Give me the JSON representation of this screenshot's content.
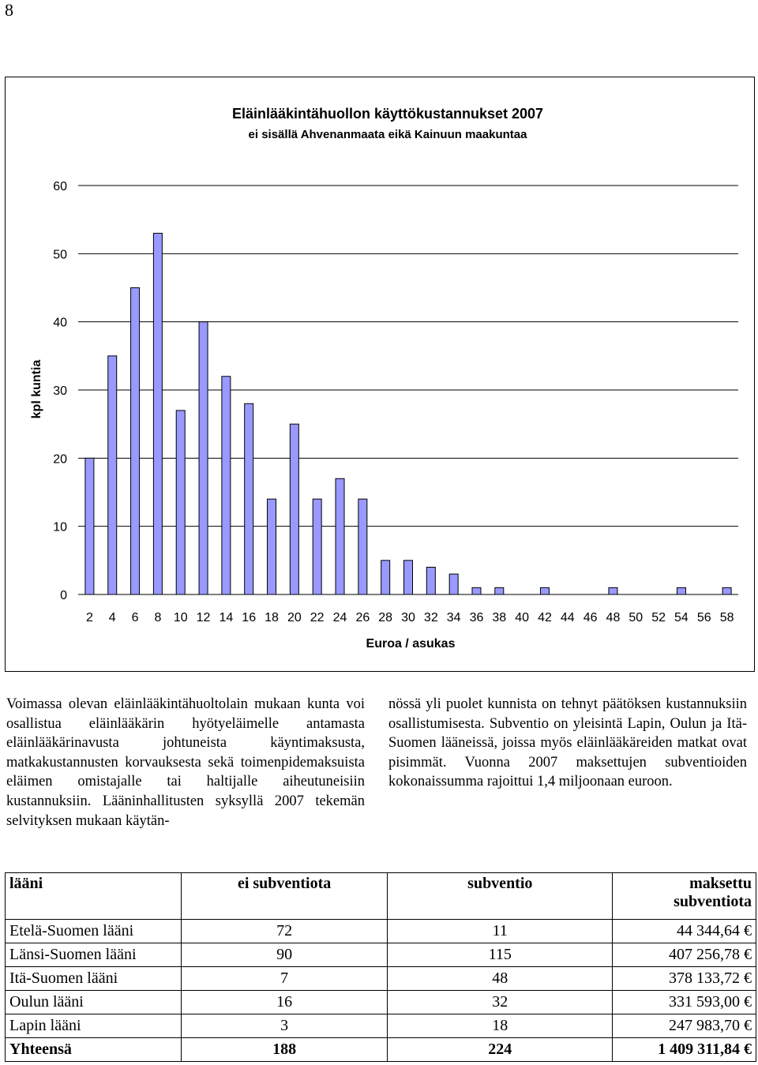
{
  "page_number": "8",
  "chart_data": {
    "type": "bar",
    "title": "Eläinlääkintähuollon käyttökustannukset 2007",
    "subtitle": "ei sisällä Ahvenanmaata eikä Kainuun maakuntaa",
    "xlabel": "Euroa / asukas",
    "ylabel": "kpl kuntia",
    "ylim": [
      0,
      60
    ],
    "yticks": [
      0,
      10,
      20,
      30,
      40,
      50,
      60
    ],
    "grid": true,
    "categories": [
      "2",
      "4",
      "6",
      "8",
      "10",
      "12",
      "14",
      "16",
      "18",
      "20",
      "22",
      "24",
      "26",
      "28",
      "30",
      "32",
      "34",
      "36",
      "38",
      "40",
      "42",
      "44",
      "46",
      "48",
      "50",
      "52",
      "54",
      "56",
      "58"
    ],
    "values": [
      20,
      35,
      45,
      53,
      27,
      40,
      32,
      28,
      14,
      25,
      14,
      17,
      14,
      5,
      5,
      4,
      3,
      1,
      1,
      0,
      1,
      0,
      0,
      1,
      0,
      0,
      1,
      0,
      1
    ],
    "bar_color": "#9999ff"
  },
  "text": {
    "left_column": "Voimassa olevan eläinlääkintähuoltolain mukaan kunta voi osallistua eläinlääkärin hyötyeläimelle antamasta eläinlääkärinavusta johtuneista käyntimaksusta, matkakustannusten korvauksesta sekä toimenpidemaksuista eläimen omistajalle tai haltijalle aiheutuneisiin kustannuksiin. Lääninhallitusten syksyllä 2007 tekemän selvityksen mukaan käytän-",
    "right_column": "nössä yli puolet kunnista on tehnyt päätöksen kustannuksiin osallistumisesta. Subventio on yleisintä Lapin, Oulun ja Itä-Suomen lääneissä, joissa myös eläinlääkäreiden matkat ovat pisimmät. Vuonna 2007 maksettujen subventioiden kokonaissumma rajoittui 1,4 miljoonaan euroon."
  },
  "table": {
    "headers": [
      "lääni",
      "ei subventiota",
      "subventio",
      "maksettu subventiota"
    ],
    "rows": [
      [
        "Etelä-Suomen lääni",
        "72",
        "11",
        "44 344,64 €"
      ],
      [
        "Länsi-Suomen lääni",
        "90",
        "115",
        "407 256,78 €"
      ],
      [
        "Itä-Suomen lääni",
        "7",
        "48",
        "378 133,72 €"
      ],
      [
        "Oulun lääni",
        "16",
        "32",
        "331 593,00 €"
      ],
      [
        "Lapin lääni",
        "3",
        "18",
        "247 983,70 €"
      ]
    ],
    "total": [
      "Yhteensä",
      "188",
      "224",
      "1 409 311,84 €"
    ]
  }
}
